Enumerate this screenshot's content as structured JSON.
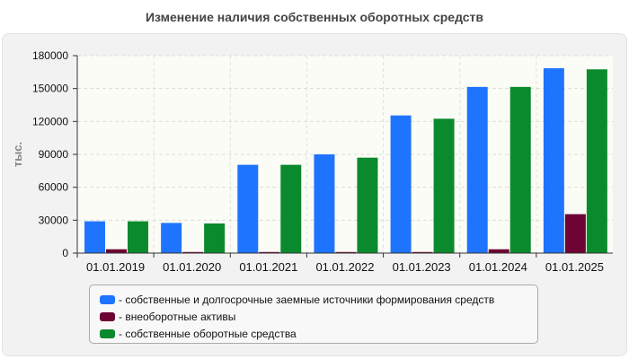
{
  "title": "Изменение наличия собственных оборотных средств",
  "chart_data": {
    "type": "bar",
    "title": "Изменение наличия собственных оборотных средств",
    "ylabel": "тыс.",
    "xlabel": "",
    "ylim": [
      0,
      180000
    ],
    "yticks": [
      0,
      30000,
      60000,
      90000,
      120000,
      150000,
      180000
    ],
    "grid": true,
    "legend_position": "bottom",
    "categories": [
      "01.01.2019",
      "01.01.2020",
      "01.01.2021",
      "01.01.2022",
      "01.01.2023",
      "01.01.2024",
      "01.01.2025"
    ],
    "series": [
      {
        "name": "- собственные и долгосрочные заемные источники формирования средств",
        "color": "#1f74ff",
        "values": [
          29000,
          27500,
          80500,
          90000,
          125500,
          151500,
          168500
        ]
      },
      {
        "name": "- внеоборотные активы",
        "color": "#6d0433",
        "values": [
          3500,
          1000,
          1000,
          1000,
          1000,
          3500,
          35500
        ]
      },
      {
        "name": "- собственные оборотные средства",
        "color": "#0b8a2d",
        "values": [
          29000,
          27000,
          80500,
          87000,
          122500,
          151500,
          167500
        ]
      }
    ]
  }
}
